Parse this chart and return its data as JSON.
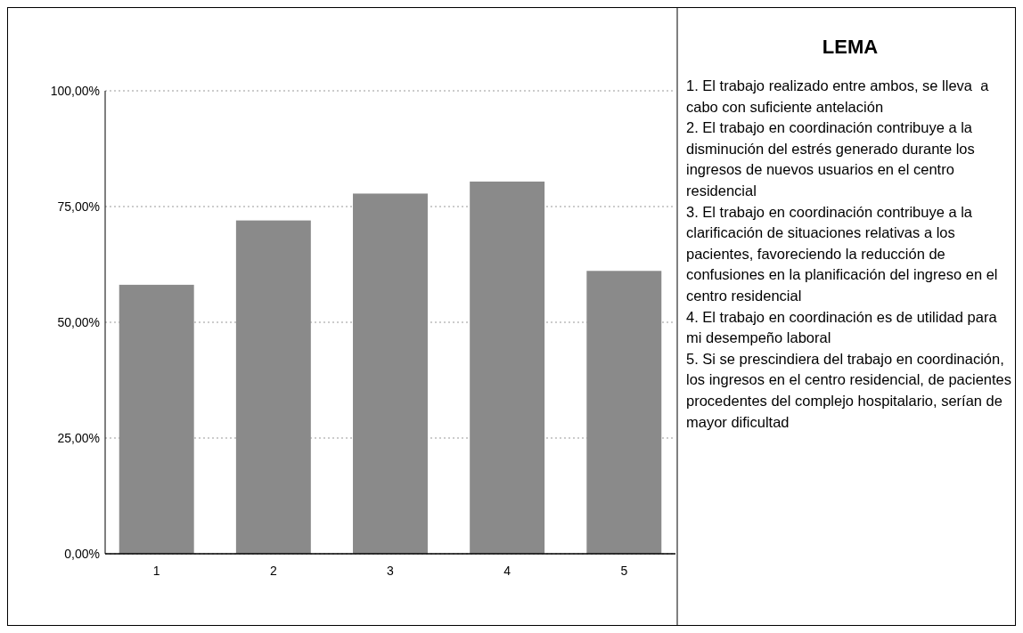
{
  "chart_data": {
    "type": "bar",
    "categories": [
      "1",
      "2",
      "3",
      "4",
      "5"
    ],
    "values": [
      58.1,
      72.0,
      77.8,
      80.4,
      61.1
    ],
    "color": "#8a8a8a",
    "ylim": [
      0,
      100
    ],
    "yticks": [
      {
        "value": 0,
        "label": "0,00%"
      },
      {
        "value": 25,
        "label": "25,00%"
      },
      {
        "value": 50,
        "label": "50,00%"
      },
      {
        "value": 75,
        "label": "75,00%"
      },
      {
        "value": 100,
        "label": "100,00%"
      }
    ],
    "grid": "y",
    "annotations": [
      "LEMA",
      "1. El trabajo realizado entre ambos, se lleva  a cabo con suficiente antelación",
      "2. El trabajo en coordinación contribuye a la disminución del estrés generado durante los ingresos de nuevos usuarios en el centro residencial",
      "3. El trabajo en coordinación contribuye a la clarificación de situaciones relativas a los pacientes, favoreciendo la reducción de confusiones en la planificación del ingreso en el centro residencial",
      "4. El trabajo en coordinación es de utilidad para mi desempeño laboral",
      "5. Si se prescindiera del trabajo en coordinación, los ingresos en el centro residencial, de pacientes procedentes del complejo hospitalario, serían de mayor dificultad"
    ]
  }
}
